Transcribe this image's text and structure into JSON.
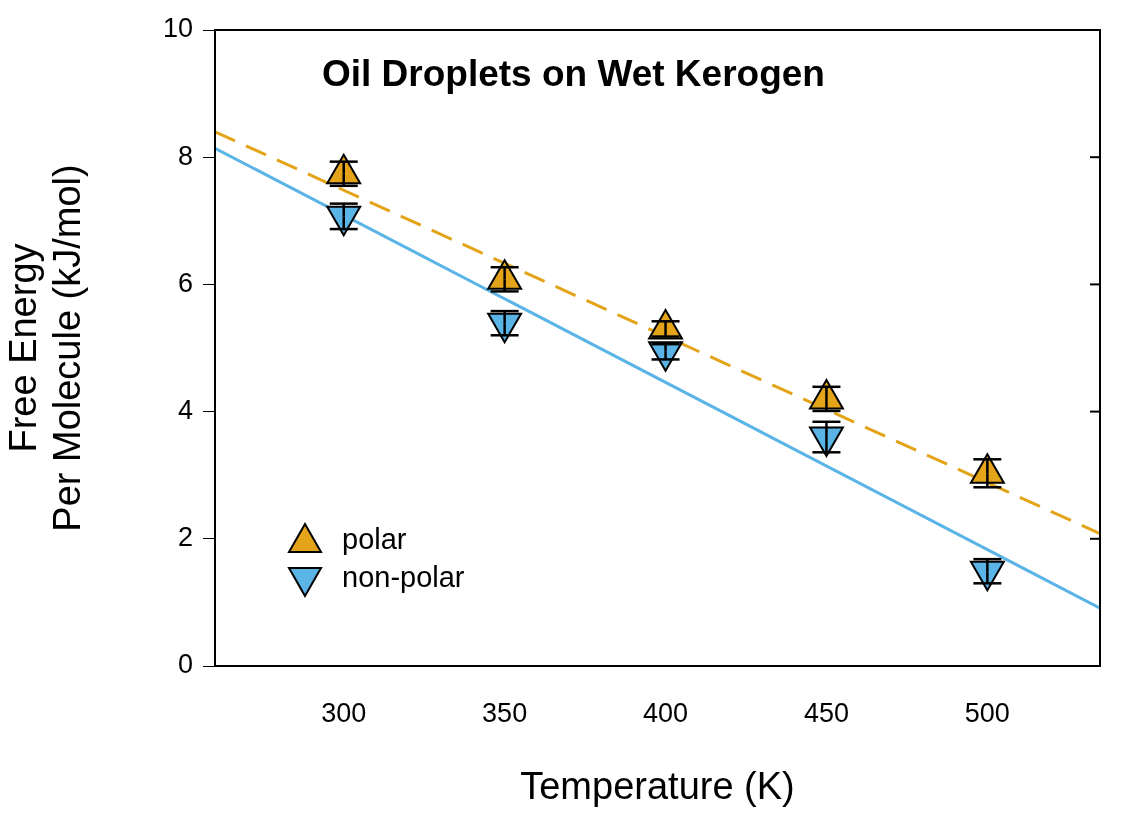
{
  "chart_data": {
    "type": "scatter",
    "title": "Oil Droplets on Wet Kerogen",
    "xlabel": "Temperature (K)",
    "ylabel": "Free Energy\nPer Molecule (kJ/mol)",
    "xlim": [
      260,
      535
    ],
    "xticks": [
      300,
      350,
      400,
      450,
      500
    ],
    "ylim": [
      0,
      10
    ],
    "yticks": [
      0,
      2,
      4,
      6,
      8,
      10
    ],
    "grid": false,
    "legend": "bottom left",
    "marker": "triangle",
    "series": [
      {
        "name": "polar",
        "color": "#e3a41a",
        "x": [
          300,
          350,
          400,
          450,
          500
        ],
        "values": [
          7.74,
          6.08,
          5.3,
          4.2,
          3.03
        ],
        "errors": [
          0.19,
          0.19,
          0.12,
          0.19,
          0.22
        ]
      },
      {
        "name": "non-polar",
        "color": "#5ab4e6",
        "x": [
          300,
          350,
          400,
          450,
          500
        ],
        "values": [
          7.07,
          5.39,
          4.94,
          3.6,
          1.49
        ],
        "errors": [
          0.2,
          0.19,
          0.12,
          0.24,
          0.19
        ]
      },
      {
        "type": "line",
        "color": "#e3a41a",
        "x": [
          260,
          535
        ],
        "values": [
          8.4,
          2.08
        ],
        "marker": "none",
        "line_style": "dashed"
      },
      {
        "type": "line",
        "color": "#5ab4e6",
        "x": [
          260,
          535
        ],
        "values": [
          8.14,
          0.91
        ],
        "marker": "none",
        "line_style": "solid"
      }
    ]
  }
}
